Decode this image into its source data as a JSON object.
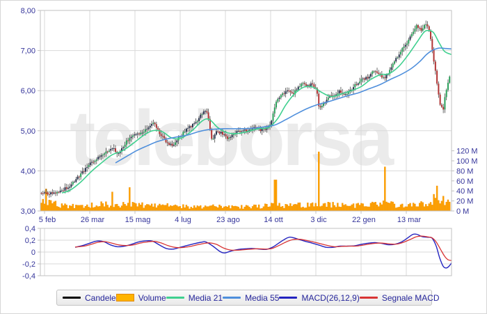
{
  "watermark": {
    "text": "teleborsa"
  },
  "legend": {
    "items": [
      {
        "label": "Candele",
        "swatch": "line",
        "color": "#000000"
      },
      {
        "label": "Volume",
        "swatch": "box",
        "color": "#ffb400",
        "border": "#e08800"
      },
      {
        "label": "Media 21",
        "swatch": "line",
        "color": "#3fd08f"
      },
      {
        "label": "Media 55",
        "swatch": "line",
        "color": "#4f8fdc"
      },
      {
        "label": "MACD(26,12,9)",
        "swatch": "line",
        "color": "#2424c0"
      },
      {
        "label": "Segnale MACD",
        "swatch": "line",
        "color": "#d83434"
      }
    ]
  },
  "chart_data": {
    "type": "candlestick",
    "panels": [
      "price+volume",
      "macd"
    ],
    "price_axis": {
      "min": 3,
      "max": 8,
      "tick_labels": [
        "8,00",
        "7,00",
        "6,00",
        "5,00",
        "4,00",
        "3,00"
      ],
      "tick_values": [
        8,
        7,
        6,
        5,
        4,
        3
      ]
    },
    "volume_axis": {
      "min": 0,
      "max": 120,
      "unit": "M",
      "tick_labels": [
        "120 M",
        "100 M",
        "80 M",
        "60 M",
        "40 M",
        "20 M",
        "0 M"
      ],
      "tick_values": [
        120,
        100,
        80,
        60,
        40,
        20,
        0
      ]
    },
    "macd_axis": {
      "min": -0.4,
      "max": 0.4,
      "tick_labels": [
        "0,4",
        "0,2",
        "0",
        "-0,2",
        "-0,4"
      ],
      "tick_values": [
        0.4,
        0.2,
        0,
        -0.2,
        -0.4
      ]
    },
    "date_ticks": [
      "5 feb",
      "26 mar",
      "15 mag",
      "4 lug",
      "23 ago",
      "14 ott",
      "3 dic",
      "22 gen",
      "13 mar"
    ],
    "close_path": [
      [
        57,
        3.45
      ],
      [
        70,
        3.42
      ],
      [
        85,
        3.5
      ],
      [
        100,
        3.62
      ],
      [
        112,
        3.85
      ],
      [
        127,
        4.15
      ],
      [
        140,
        4.32
      ],
      [
        152,
        4.5
      ],
      [
        162,
        4.55
      ],
      [
        170,
        4.42
      ],
      [
        180,
        4.72
      ],
      [
        190,
        4.9
      ],
      [
        200,
        4.95
      ],
      [
        210,
        5.05
      ],
      [
        220,
        5.2
      ],
      [
        228,
        4.95
      ],
      [
        238,
        4.72
      ],
      [
        246,
        4.62
      ],
      [
        256,
        4.82
      ],
      [
        268,
        5.05
      ],
      [
        280,
        5.2
      ],
      [
        290,
        5.45
      ],
      [
        296,
        5.5
      ],
      [
        300,
        5.15
      ],
      [
        304,
        4.72
      ],
      [
        310,
        4.98
      ],
      [
        318,
        4.95
      ],
      [
        326,
        4.8
      ],
      [
        334,
        4.92
      ],
      [
        344,
        5.0
      ],
      [
        354,
        5.0
      ],
      [
        364,
        5.1
      ],
      [
        374,
        5.02
      ],
      [
        384,
        5.05
      ],
      [
        390,
        5.3
      ],
      [
        396,
        5.75
      ],
      [
        404,
        5.9
      ],
      [
        412,
        6.0
      ],
      [
        420,
        5.92
      ],
      [
        428,
        6.08
      ],
      [
        434,
        6.22
      ],
      [
        440,
        6.1
      ],
      [
        448,
        6.18
      ],
      [
        454,
        6.0
      ],
      [
        458,
        5.55
      ],
      [
        464,
        5.68
      ],
      [
        472,
        5.85
      ],
      [
        480,
        5.9
      ],
      [
        488,
        6.0
      ],
      [
        494,
        5.88
      ],
      [
        502,
        5.98
      ],
      [
        510,
        6.15
      ],
      [
        518,
        6.28
      ],
      [
        528,
        6.33
      ],
      [
        536,
        6.48
      ],
      [
        544,
        6.42
      ],
      [
        552,
        6.3
      ],
      [
        560,
        6.52
      ],
      [
        568,
        6.78
      ],
      [
        576,
        7.0
      ],
      [
        584,
        7.2
      ],
      [
        592,
        7.45
      ],
      [
        598,
        7.62
      ],
      [
        604,
        7.5
      ],
      [
        610,
        7.68
      ],
      [
        616,
        7.5
      ],
      [
        620,
        7.05
      ],
      [
        624,
        6.6
      ],
      [
        628,
        6.05
      ],
      [
        632,
        5.62
      ],
      [
        636,
        5.5
      ],
      [
        640,
        6.0
      ],
      [
        644,
        6.25
      ],
      [
        648,
        6.65
      ]
    ],
    "media21": [
      [
        88,
        3.45
      ],
      [
        100,
        3.52
      ],
      [
        115,
        3.72
      ],
      [
        130,
        3.98
      ],
      [
        145,
        4.2
      ],
      [
        160,
        4.4
      ],
      [
        175,
        4.5
      ],
      [
        190,
        4.68
      ],
      [
        205,
        4.88
      ],
      [
        218,
        5.0
      ],
      [
        232,
        4.98
      ],
      [
        246,
        4.82
      ],
      [
        260,
        4.82
      ],
      [
        275,
        5.0
      ],
      [
        290,
        5.25
      ],
      [
        300,
        5.28
      ],
      [
        312,
        5.08
      ],
      [
        326,
        4.95
      ],
      [
        340,
        4.93
      ],
      [
        355,
        4.98
      ],
      [
        370,
        5.05
      ],
      [
        385,
        5.08
      ],
      [
        398,
        5.3
      ],
      [
        410,
        5.65
      ],
      [
        424,
        5.95
      ],
      [
        438,
        6.1
      ],
      [
        450,
        6.08
      ],
      [
        462,
        5.95
      ],
      [
        476,
        5.85
      ],
      [
        490,
        5.92
      ],
      [
        504,
        6.0
      ],
      [
        518,
        6.1
      ],
      [
        532,
        6.28
      ],
      [
        546,
        6.4
      ],
      [
        558,
        6.42
      ],
      [
        572,
        6.6
      ],
      [
        586,
        6.9
      ],
      [
        598,
        7.2
      ],
      [
        608,
        7.45
      ],
      [
        614,
        7.5
      ],
      [
        622,
        7.45
      ],
      [
        630,
        7.2
      ],
      [
        638,
        6.98
      ],
      [
        648,
        6.9
      ]
    ],
    "media55": [
      [
        165,
        4.2
      ],
      [
        180,
        4.35
      ],
      [
        195,
        4.5
      ],
      [
        210,
        4.62
      ],
      [
        225,
        4.73
      ],
      [
        240,
        4.8
      ],
      [
        255,
        4.85
      ],
      [
        270,
        4.9
      ],
      [
        285,
        4.98
      ],
      [
        300,
        5.03
      ],
      [
        320,
        5.05
      ],
      [
        340,
        5.05
      ],
      [
        360,
        5.06
      ],
      [
        380,
        5.1
      ],
      [
        395,
        5.15
      ],
      [
        410,
        5.28
      ],
      [
        425,
        5.42
      ],
      [
        440,
        5.55
      ],
      [
        455,
        5.65
      ],
      [
        470,
        5.72
      ],
      [
        485,
        5.8
      ],
      [
        500,
        5.88
      ],
      [
        515,
        5.95
      ],
      [
        530,
        6.05
      ],
      [
        545,
        6.15
      ],
      [
        560,
        6.28
      ],
      [
        575,
        6.4
      ],
      [
        590,
        6.55
      ],
      [
        602,
        6.72
      ],
      [
        612,
        6.9
      ],
      [
        620,
        7.0
      ],
      [
        630,
        7.06
      ],
      [
        640,
        7.05
      ],
      [
        648,
        7.04
      ]
    ],
    "macd": [
      [
        107,
        0.08
      ],
      [
        118,
        0.11
      ],
      [
        128,
        0.15
      ],
      [
        138,
        0.185
      ],
      [
        148,
        0.175
      ],
      [
        158,
        0.12
      ],
      [
        168,
        0.09
      ],
      [
        178,
        0.1
      ],
      [
        188,
        0.13
      ],
      [
        198,
        0.17
      ],
      [
        208,
        0.19
      ],
      [
        218,
        0.185
      ],
      [
        228,
        0.12
      ],
      [
        238,
        0.06
      ],
      [
        248,
        0.05
      ],
      [
        258,
        0.08
      ],
      [
        268,
        0.11
      ],
      [
        278,
        0.14
      ],
      [
        288,
        0.165
      ],
      [
        295,
        0.17
      ],
      [
        305,
        0.1
      ],
      [
        315,
        0.01
      ],
      [
        322,
        -0.015
      ],
      [
        332,
        0.02
      ],
      [
        342,
        0.045
      ],
      [
        352,
        0.055
      ],
      [
        362,
        0.06
      ],
      [
        372,
        0.05
      ],
      [
        382,
        0.045
      ],
      [
        392,
        0.09
      ],
      [
        402,
        0.17
      ],
      [
        412,
        0.24
      ],
      [
        418,
        0.25
      ],
      [
        428,
        0.215
      ],
      [
        438,
        0.18
      ],
      [
        448,
        0.15
      ],
      [
        458,
        0.115
      ],
      [
        468,
        0.08
      ],
      [
        478,
        0.08
      ],
      [
        488,
        0.1
      ],
      [
        498,
        0.1
      ],
      [
        508,
        0.105
      ],
      [
        518,
        0.13
      ],
      [
        528,
        0.15
      ],
      [
        538,
        0.16
      ],
      [
        548,
        0.145
      ],
      [
        556,
        0.125
      ],
      [
        566,
        0.13
      ],
      [
        576,
        0.17
      ],
      [
        584,
        0.23
      ],
      [
        592,
        0.295
      ],
      [
        598,
        0.3
      ],
      [
        606,
        0.26
      ],
      [
        614,
        0.25
      ],
      [
        620,
        0.235
      ],
      [
        626,
        0.1
      ],
      [
        631,
        -0.1
      ],
      [
        636,
        -0.24
      ],
      [
        640,
        -0.27
      ],
      [
        644,
        -0.245
      ],
      [
        648,
        -0.185
      ]
    ],
    "macd_signal": [
      [
        107,
        0.085
      ],
      [
        120,
        0.1
      ],
      [
        130,
        0.13
      ],
      [
        140,
        0.165
      ],
      [
        150,
        0.175
      ],
      [
        160,
        0.15
      ],
      [
        170,
        0.12
      ],
      [
        180,
        0.11
      ],
      [
        190,
        0.12
      ],
      [
        200,
        0.15
      ],
      [
        210,
        0.17
      ],
      [
        220,
        0.18
      ],
      [
        230,
        0.155
      ],
      [
        240,
        0.11
      ],
      [
        250,
        0.08
      ],
      [
        260,
        0.075
      ],
      [
        270,
        0.09
      ],
      [
        280,
        0.115
      ],
      [
        290,
        0.14
      ],
      [
        300,
        0.155
      ],
      [
        310,
        0.13
      ],
      [
        320,
        0.07
      ],
      [
        330,
        0.035
      ],
      [
        340,
        0.03
      ],
      [
        350,
        0.04
      ],
      [
        360,
        0.05
      ],
      [
        370,
        0.055
      ],
      [
        380,
        0.05
      ],
      [
        390,
        0.06
      ],
      [
        400,
        0.11
      ],
      [
        410,
        0.17
      ],
      [
        420,
        0.21
      ],
      [
        430,
        0.215
      ],
      [
        440,
        0.195
      ],
      [
        450,
        0.17
      ],
      [
        460,
        0.14
      ],
      [
        470,
        0.11
      ],
      [
        480,
        0.09
      ],
      [
        490,
        0.095
      ],
      [
        500,
        0.1
      ],
      [
        510,
        0.1
      ],
      [
        520,
        0.115
      ],
      [
        530,
        0.135
      ],
      [
        540,
        0.15
      ],
      [
        550,
        0.15
      ],
      [
        560,
        0.135
      ],
      [
        570,
        0.135
      ],
      [
        580,
        0.17
      ],
      [
        590,
        0.22
      ],
      [
        598,
        0.26
      ],
      [
        606,
        0.27
      ],
      [
        614,
        0.255
      ],
      [
        620,
        0.24
      ],
      [
        626,
        0.17
      ],
      [
        632,
        0.05
      ],
      [
        638,
        -0.07
      ],
      [
        643,
        -0.13
      ],
      [
        648,
        -0.145
      ]
    ],
    "volume_base": [
      [
        57,
        20
      ],
      [
        75,
        16
      ],
      [
        95,
        11
      ],
      [
        115,
        12
      ],
      [
        135,
        13
      ],
      [
        155,
        15
      ],
      [
        175,
        14
      ],
      [
        195,
        13
      ],
      [
        215,
        12
      ],
      [
        235,
        11
      ],
      [
        255,
        10
      ],
      [
        275,
        9
      ],
      [
        295,
        10
      ],
      [
        315,
        9
      ],
      [
        335,
        8
      ],
      [
        355,
        9
      ],
      [
        375,
        10
      ],
      [
        395,
        12
      ],
      [
        415,
        12
      ],
      [
        435,
        12
      ],
      [
        455,
        13
      ],
      [
        475,
        13
      ],
      [
        495,
        11
      ],
      [
        515,
        12
      ],
      [
        535,
        13
      ],
      [
        555,
        15
      ],
      [
        575,
        13
      ],
      [
        595,
        14
      ],
      [
        610,
        16
      ],
      [
        622,
        24
      ],
      [
        634,
        22
      ],
      [
        648,
        18
      ]
    ],
    "volume_spikes": [
      [
        66,
        44
      ],
      [
        160,
        38
      ],
      [
        185,
        47
      ],
      [
        395,
        62
      ],
      [
        457,
        118
      ],
      [
        552,
        88
      ],
      [
        628,
        50
      ]
    ],
    "colors": {
      "up": "#27334f",
      "up_strong": "#2aa05a",
      "down": "#b13434",
      "wick": "#444444",
      "volume": "#ffa200",
      "volume_edge": "#ef8e00",
      "media21": "#3fd08f",
      "media55": "#4f8fdc",
      "macd": "#2424c0",
      "signal": "#d83434",
      "grid": "#d9d9d9",
      "border": "#c0c0c0",
      "tick_text": "#35359b",
      "watermark": "#ebebeb"
    }
  }
}
